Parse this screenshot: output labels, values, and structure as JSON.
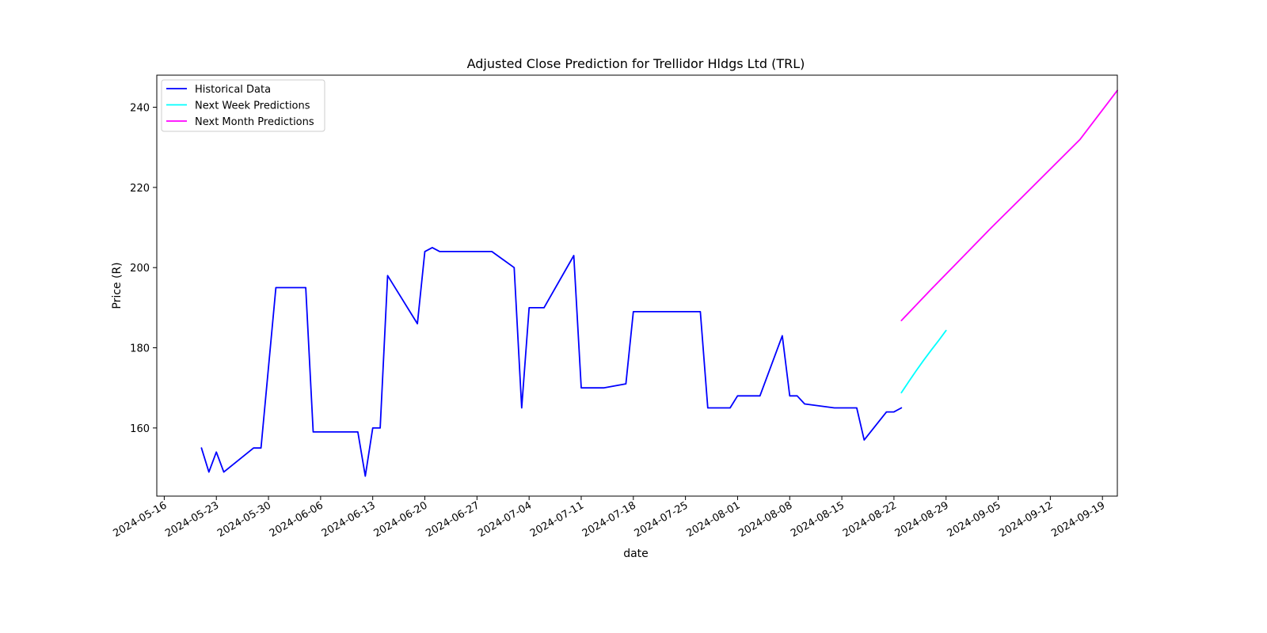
{
  "chart_data": {
    "type": "line",
    "title": "Adjusted Close Prediction for Trellidor Hldgs Ltd (TRL)",
    "xlabel": "date",
    "ylabel": "Price (R)",
    "ylim": [
      143,
      248
    ],
    "xlim": [
      "2024-05-15",
      "2024-09-21"
    ],
    "grid": false,
    "legend_position": "top-left",
    "x_ticks": [
      "2024-05-16",
      "2024-05-23",
      "2024-05-30",
      "2024-06-06",
      "2024-06-13",
      "2024-06-20",
      "2024-06-27",
      "2024-07-04",
      "2024-07-11",
      "2024-07-18",
      "2024-07-25",
      "2024-08-01",
      "2024-08-08",
      "2024-08-15",
      "2024-08-22",
      "2024-08-29",
      "2024-09-05",
      "2024-09-12",
      "2024-09-19"
    ],
    "y_ticks": [
      160,
      180,
      200,
      220,
      240
    ],
    "series": [
      {
        "name": "Historical Data",
        "color": "#0000ff",
        "points": [
          [
            "2024-05-21",
            155
          ],
          [
            "2024-05-22",
            149
          ],
          [
            "2024-05-23",
            154
          ],
          [
            "2024-05-24",
            149
          ],
          [
            "2024-05-28",
            155
          ],
          [
            "2024-05-29",
            155
          ],
          [
            "2024-05-31",
            195
          ],
          [
            "2024-06-04",
            195
          ],
          [
            "2024-06-05",
            159
          ],
          [
            "2024-06-11",
            159
          ],
          [
            "2024-06-12",
            148
          ],
          [
            "2024-06-13",
            160
          ],
          [
            "2024-06-14",
            160
          ],
          [
            "2024-06-15",
            198
          ],
          [
            "2024-06-19",
            186
          ],
          [
            "2024-06-20",
            204
          ],
          [
            "2024-06-21",
            205
          ],
          [
            "2024-06-22",
            204
          ],
          [
            "2024-06-29",
            204
          ],
          [
            "2024-07-02",
            200
          ],
          [
            "2024-07-03",
            165
          ],
          [
            "2024-07-04",
            190
          ],
          [
            "2024-07-06",
            190
          ],
          [
            "2024-07-10",
            203
          ],
          [
            "2024-07-11",
            170
          ],
          [
            "2024-07-14",
            170
          ],
          [
            "2024-07-17",
            171
          ],
          [
            "2024-07-18",
            189
          ],
          [
            "2024-07-27",
            189
          ],
          [
            "2024-07-28",
            165
          ],
          [
            "2024-07-31",
            165
          ],
          [
            "2024-08-01",
            168
          ],
          [
            "2024-08-04",
            168
          ],
          [
            "2024-08-07",
            183
          ],
          [
            "2024-08-08",
            168
          ],
          [
            "2024-08-09",
            168
          ],
          [
            "2024-08-10",
            166
          ],
          [
            "2024-08-14",
            165
          ],
          [
            "2024-08-17",
            165
          ],
          [
            "2024-08-18",
            157
          ],
          [
            "2024-08-21",
            164
          ],
          [
            "2024-08-22",
            164
          ],
          [
            "2024-08-23",
            165
          ]
        ]
      },
      {
        "name": "Next Week Predictions",
        "color": "#00ffff",
        "points": [
          [
            "2024-08-23",
            168.8
          ],
          [
            "2024-08-24",
            171.6
          ],
          [
            "2024-08-25",
            174.3
          ],
          [
            "2024-08-26",
            176.9
          ],
          [
            "2024-08-27",
            179.4
          ],
          [
            "2024-08-28",
            181.8
          ],
          [
            "2024-08-29",
            184.3
          ]
        ]
      },
      {
        "name": "Next Month Predictions",
        "color": "#ff00ff",
        "points": [
          [
            "2024-08-23",
            186.8
          ],
          [
            "2024-08-27",
            194.6
          ],
          [
            "2024-08-31",
            202.2
          ],
          [
            "2024-09-04",
            209.8
          ],
          [
            "2024-09-08",
            217.2
          ],
          [
            "2024-09-12",
            224.6
          ],
          [
            "2024-09-16",
            232.0
          ],
          [
            "2024-09-21",
            244.2
          ]
        ]
      }
    ]
  }
}
